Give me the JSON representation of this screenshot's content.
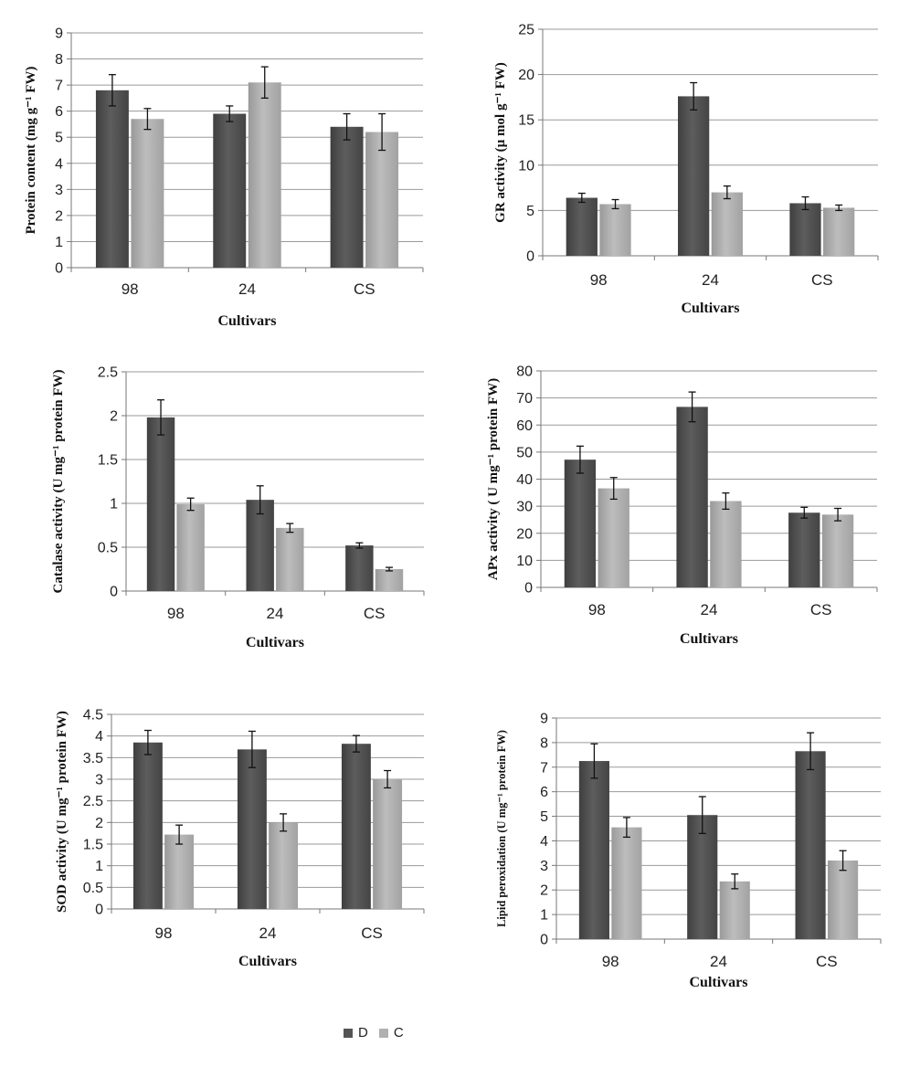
{
  "legend": [
    {
      "label": "D",
      "color": "#555555"
    },
    {
      "label": "C",
      "color": "#b0b0b0"
    }
  ],
  "chart_data": [
    {
      "type": "bar",
      "categories": [
        "98",
        "24",
        "CS"
      ],
      "series": [
        {
          "name": "D",
          "values": [
            6.8,
            5.9,
            5.4
          ],
          "errors": [
            0.6,
            0.3,
            0.5
          ]
        },
        {
          "name": "C",
          "values": [
            5.7,
            7.1,
            5.2
          ],
          "errors": [
            0.4,
            0.6,
            0.7
          ]
        }
      ],
      "ylabel": "Protein content (mg g⁻¹ FW)",
      "xlabel": "Cultivars",
      "ylim": [
        0,
        9
      ],
      "yticks": [
        0,
        1,
        2,
        3,
        4,
        5,
        6,
        7,
        8,
        9
      ],
      "grid": true
    },
    {
      "type": "bar",
      "categories": [
        "98",
        "24",
        "CS"
      ],
      "series": [
        {
          "name": "D",
          "values": [
            6.4,
            17.6,
            5.8
          ],
          "errors": [
            0.5,
            1.5,
            0.7
          ]
        },
        {
          "name": "C",
          "values": [
            5.7,
            7.0,
            5.3
          ],
          "errors": [
            0.5,
            0.7,
            0.3
          ]
        }
      ],
      "ylabel": "GR activity (µ mol g⁻¹ FW)",
      "xlabel": "Cultivars",
      "ylim": [
        0,
        25
      ],
      "yticks": [
        0,
        5,
        10,
        15,
        20,
        25
      ],
      "grid": true
    },
    {
      "type": "bar",
      "categories": [
        "98",
        "24",
        "CS"
      ],
      "series": [
        {
          "name": "D",
          "values": [
            1.98,
            1.04,
            0.52
          ],
          "errors": [
            0.2,
            0.16,
            0.03
          ]
        },
        {
          "name": "C",
          "values": [
            0.99,
            0.72,
            0.25
          ],
          "errors": [
            0.07,
            0.05,
            0.02
          ]
        }
      ],
      "ylabel": "Catalase activity (U mg⁻¹ protein FW)",
      "xlabel": "Cultivars",
      "ylim": [
        0,
        2.5
      ],
      "yticks": [
        0,
        0.5,
        1,
        1.5,
        2,
        2.5
      ],
      "grid": true
    },
    {
      "type": "bar",
      "categories": [
        "98",
        "24",
        "CS"
      ],
      "series": [
        {
          "name": "D",
          "values": [
            47.2,
            66.7,
            27.6
          ],
          "errors": [
            5.0,
            5.5,
            2.0
          ]
        },
        {
          "name": "C",
          "values": [
            36.6,
            31.9,
            26.9
          ],
          "errors": [
            4.0,
            3.0,
            2.3
          ]
        }
      ],
      "ylabel": "APx activity ( U mg⁻¹ protein FW)",
      "xlabel": "Cultivars",
      "ylim": [
        0,
        80
      ],
      "yticks": [
        0,
        10,
        20,
        30,
        40,
        50,
        60,
        70,
        80
      ],
      "grid": true
    },
    {
      "type": "bar",
      "categories": [
        "98",
        "24",
        "CS"
      ],
      "series": [
        {
          "name": "D",
          "values": [
            3.85,
            3.69,
            3.82
          ],
          "errors": [
            0.28,
            0.42,
            0.19
          ]
        },
        {
          "name": "C",
          "values": [
            1.72,
            2.0,
            3.0
          ],
          "errors": [
            0.22,
            0.2,
            0.2
          ]
        }
      ],
      "ylabel": "SOD activity (U mg⁻¹ protein FW)",
      "xlabel": "Cultivars",
      "ylim": [
        0,
        4.5
      ],
      "yticks": [
        0,
        0.5,
        1,
        1.5,
        2,
        2.5,
        3,
        3.5,
        4,
        4.5
      ],
      "grid": true
    },
    {
      "type": "bar",
      "categories": [
        "98",
        "24",
        "CS"
      ],
      "series": [
        {
          "name": "D",
          "values": [
            7.25,
            5.05,
            7.65
          ],
          "errors": [
            0.7,
            0.75,
            0.75
          ]
        },
        {
          "name": "C",
          "values": [
            4.55,
            2.35,
            3.2
          ],
          "errors": [
            0.4,
            0.3,
            0.4
          ]
        }
      ],
      "ylabel": "Lipid peroxidation (U mg⁻¹ protein FW)",
      "xlabel": "Cultivars",
      "ylim": [
        0,
        9
      ],
      "yticks": [
        0,
        1,
        2,
        3,
        4,
        5,
        6,
        7,
        8,
        9
      ],
      "grid": true
    }
  ]
}
